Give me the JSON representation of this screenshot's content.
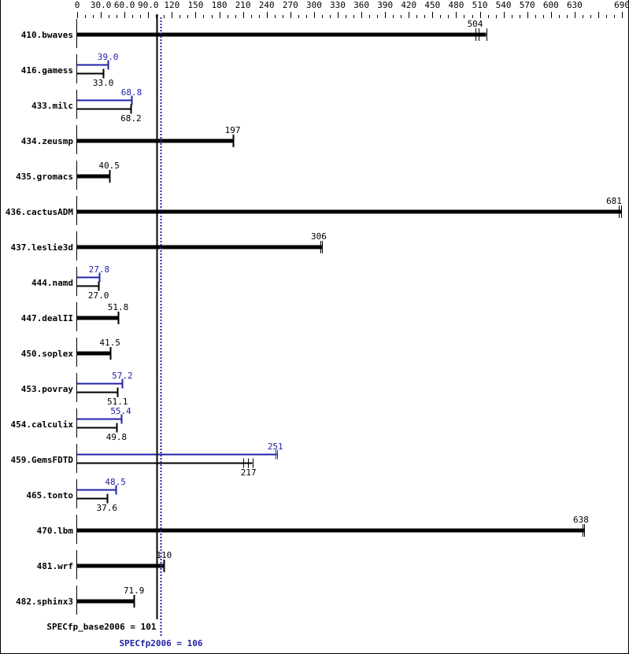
{
  "chart_data": {
    "type": "bar",
    "orientation": "horizontal",
    "xlim": [
      0,
      690
    ],
    "x_ticks": [
      0,
      30.0,
      60.0,
      90.0,
      120,
      150,
      180,
      210,
      240,
      270,
      300,
      330,
      360,
      390,
      420,
      450,
      480,
      510,
      540,
      570,
      600,
      630,
      690
    ],
    "x_tick_labels": [
      "0",
      "30.0",
      "60.0",
      "90.0",
      "120",
      "150",
      "180",
      "210",
      "240",
      "270",
      "300",
      "330",
      "360",
      "390",
      "420",
      "450",
      "480",
      "510",
      "540",
      "570",
      "600",
      "630",
      "690"
    ],
    "colors": {
      "base": "#000000",
      "peak": "#2222aa"
    },
    "benchmarks": [
      {
        "name": "410.bwaves",
        "base": 504,
        "base_label": "504",
        "base_runs": [
          504,
          508,
          518
        ]
      },
      {
        "name": "416.gamess",
        "base": 33.0,
        "base_label": "33.0",
        "peak": 39.0,
        "peak_label": "39.0"
      },
      {
        "name": "433.milc",
        "base": 68.2,
        "base_label": "68.2",
        "peak": 68.8,
        "peak_label": "68.8"
      },
      {
        "name": "434.zeusmp",
        "base": 197,
        "base_label": "197"
      },
      {
        "name": "435.gromacs",
        "base": 40.5,
        "base_label": "40.5"
      },
      {
        "name": "436.cactusADM",
        "base": 681,
        "base_label": "681",
        "base_runs": [
          686,
          689
        ]
      },
      {
        "name": "437.leslie3d",
        "base": 306,
        "base_label": "306",
        "base_runs": [
          308,
          310
        ]
      },
      {
        "name": "444.namd",
        "base": 27.0,
        "base_label": "27.0",
        "peak": 27.8,
        "peak_label": "27.8"
      },
      {
        "name": "447.dealII",
        "base": 51.8,
        "base_label": "51.8"
      },
      {
        "name": "450.soplex",
        "base": 41.5,
        "base_label": "41.5"
      },
      {
        "name": "453.povray",
        "base": 51.1,
        "base_label": "51.1",
        "peak": 57.2,
        "peak_label": "57.2"
      },
      {
        "name": "454.calculix",
        "base": 49.8,
        "base_label": "49.8",
        "peak": 55.4,
        "peak_label": "55.4"
      },
      {
        "name": "459.GemsFDTD",
        "base": 217,
        "base_label": "217",
        "base_runs": [
          210,
          216,
          222
        ],
        "peak": 251,
        "peak_label": "251",
        "peak_runs": [
          251,
          253
        ]
      },
      {
        "name": "465.tonto",
        "base": 37.6,
        "base_label": "37.6",
        "peak": 48.5,
        "peak_label": "48.5"
      },
      {
        "name": "470.lbm",
        "base": 638,
        "base_label": "638",
        "base_runs": [
          640,
          642
        ]
      },
      {
        "name": "481.wrf",
        "base": 110,
        "base_label": "110"
      },
      {
        "name": "482.sphinx3",
        "base": 71.9,
        "base_label": "71.9"
      }
    ],
    "summary": {
      "base_value": 101,
      "base_label": "SPECfp_base2006 = 101",
      "peak_value": 106,
      "peak_label": "SPECfp2006 = 106"
    }
  }
}
